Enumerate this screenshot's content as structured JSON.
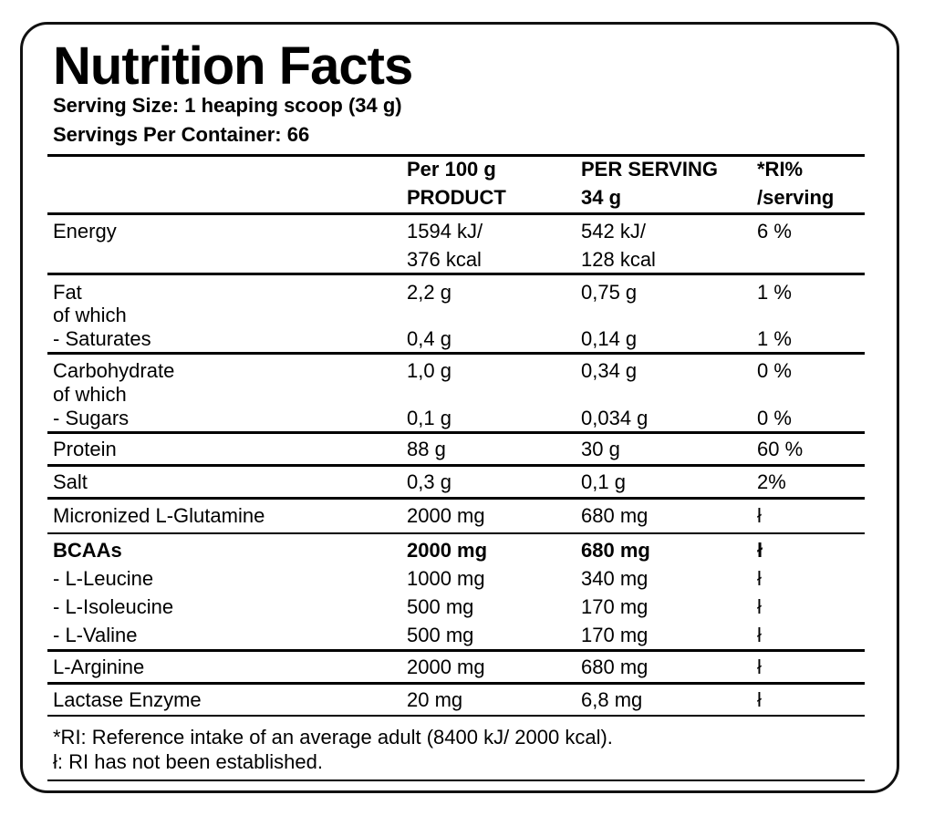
{
  "title": "Nutrition Facts",
  "serving_size": "Serving Size: 1 heaping scoop (34 g)",
  "servings_per_container": "Servings Per Container: 66",
  "header": {
    "col1_line1": "Per 100 g",
    "col1_line2": "PRODUCT",
    "col2_line1": "PER SERVING",
    "col2_line2": "34 g",
    "col3_line1": "*RI%",
    "col3_line2": "/serving"
  },
  "rows": {
    "energy": {
      "label": "Energy",
      "per100_kj": "1594 kJ/",
      "per100_kcal": "376 kcal",
      "serv_kj": "542 kJ/",
      "serv_kcal": "128 kcal",
      "ri": "6 %"
    },
    "fat": {
      "label": "Fat",
      "per100": "2,2 g",
      "serving": "0,75 g",
      "ri": "1 %"
    },
    "fat_of_which": "of which",
    "saturates": {
      "label": "- Saturates",
      "per100": "0,4 g",
      "serving": "0,14 g",
      "ri": "1 %"
    },
    "carbohydrate": {
      "label": "Carbohydrate",
      "per100": "1,0 g",
      "serving": "0,34 g",
      "ri": "0 %"
    },
    "carb_of_which": "of which",
    "sugars": {
      "label": "- Sugars",
      "per100": "0,1 g",
      "serving": "0,034 g",
      "ri": "0 %"
    },
    "protein": {
      "label": "Protein",
      "per100": "88 g",
      "serving": "30 g",
      "ri": "60 %"
    },
    "salt": {
      "label": "Salt",
      "per100": "0,3 g",
      "serving": "0,1 g",
      "ri": "2%"
    },
    "glutamine": {
      "label": "Micronized L-Glutamine",
      "per100": "2000 mg",
      "serving": "680 mg",
      "ri": "ł"
    },
    "bcaas": {
      "label": "BCAAs",
      "per100": "2000 mg",
      "serving": "680 mg",
      "ri": "ł"
    },
    "leucine": {
      "label": "- L-Leucine",
      "per100": "1000 mg",
      "serving": "340 mg",
      "ri": "ł"
    },
    "isoleucine": {
      "label": "- L-Isoleucine",
      "per100": "500 mg",
      "serving": "170 mg",
      "ri": "ł"
    },
    "valine": {
      "label": "- L-Valine",
      "per100": "500 mg",
      "serving": "170 mg",
      "ri": "ł"
    },
    "arginine": {
      "label": "L-Arginine",
      "per100": "2000 mg",
      "serving": "680 mg",
      "ri": "ł"
    },
    "lactase": {
      "label": "Lactase Enzyme",
      "per100": "20 mg",
      "serving": "6,8 mg",
      "ri": "ł"
    }
  },
  "footnotes": {
    "ri_note": "*RI: Reference intake of an average adult (8400 kJ/ 2000 kcal).",
    "dagger_note": "ł: RI has not been established."
  }
}
